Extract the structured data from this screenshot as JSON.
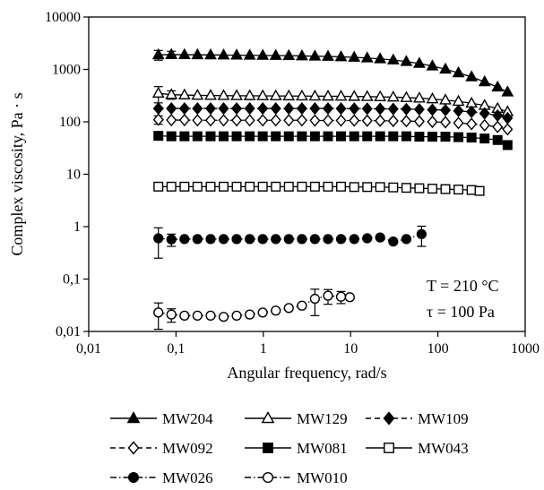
{
  "chart_data": {
    "type": "scatter",
    "x_scale": "log",
    "y_scale": "log",
    "xlabel": "Angular frequency, rad/s",
    "ylabel": "Complex viscosity, Pa · s",
    "xlim": [
      0.01,
      1000
    ],
    "ylim": [
      0.01,
      10000
    ],
    "x_ticks": [
      0.01,
      0.1,
      1,
      10,
      100,
      1000
    ],
    "x_tick_labels": [
      "0,01",
      "0,1",
      "1",
      "10",
      "100",
      "1000"
    ],
    "y_ticks": [
      0.01,
      0.1,
      1,
      10,
      100,
      1000,
      10000
    ],
    "y_tick_labels": [
      "0,01",
      "0,1",
      "1",
      "10",
      "100",
      "1000",
      "10000"
    ],
    "grid": false,
    "legend_position": "bottom",
    "annotations": [
      "T = 210 °C",
      "τ = 100 Pa"
    ],
    "series": [
      {
        "name": "MW204",
        "marker": "triangle",
        "filled": true,
        "line": "solid",
        "x": [
          0.0628,
          0.0885,
          0.125,
          0.176,
          0.249,
          0.351,
          0.495,
          0.699,
          0.985,
          1.39,
          1.96,
          2.77,
          3.9,
          5.51,
          7.77,
          11.0,
          15.5,
          21.8,
          30.8,
          43.5,
          61.3,
          86.5,
          122,
          172,
          243,
          343,
          483,
          628
        ],
        "y": [
          1900,
          1920,
          1910,
          1900,
          1890,
          1880,
          1870,
          1860,
          1850,
          1840,
          1830,
          1810,
          1790,
          1770,
          1740,
          1700,
          1650,
          1590,
          1510,
          1410,
          1300,
          1160,
          1010,
          860,
          720,
          580,
          460,
          370
        ],
        "err": [
          [
            0,
            400
          ],
          [
            1,
            300
          ]
        ]
      },
      {
        "name": "MW129",
        "marker": "triangle",
        "filled": false,
        "line": "solid",
        "x": [
          0.0628,
          0.0885,
          0.125,
          0.176,
          0.249,
          0.351,
          0.495,
          0.699,
          0.985,
          1.39,
          1.96,
          2.77,
          3.9,
          5.51,
          7.77,
          11.0,
          15.5,
          21.8,
          30.8,
          43.5,
          61.3,
          86.5,
          122,
          172,
          243,
          343,
          483,
          628
        ],
        "y": [
          350,
          330,
          325,
          320,
          318,
          316,
          315,
          314,
          313,
          312,
          311,
          310,
          309,
          308,
          307,
          305,
          303,
          300,
          296,
          290,
          283,
          273,
          260,
          245,
          226,
          205,
          180,
          155
        ],
        "err": [
          [
            0,
            120
          ],
          [
            1,
            60
          ]
        ]
      },
      {
        "name": "MW109",
        "marker": "diamond",
        "filled": true,
        "line": "dashed",
        "x": [
          0.0628,
          0.0885,
          0.125,
          0.176,
          0.249,
          0.351,
          0.495,
          0.699,
          0.985,
          1.39,
          1.96,
          2.77,
          3.9,
          5.51,
          7.77,
          11.0,
          15.5,
          21.8,
          30.8,
          43.5,
          61.3,
          86.5,
          122,
          172,
          243,
          343,
          483,
          628
        ],
        "y": [
          180,
          180,
          180,
          180,
          180,
          180,
          180,
          180,
          180,
          180,
          180,
          180,
          180,
          180,
          179,
          179,
          178,
          177,
          176,
          175,
          173,
          170,
          167,
          162,
          155,
          145,
          132,
          118
        ],
        "err": []
      },
      {
        "name": "MW092",
        "marker": "diamond",
        "filled": false,
        "line": "dashed",
        "x": [
          0.0628,
          0.0885,
          0.125,
          0.176,
          0.249,
          0.351,
          0.495,
          0.699,
          0.985,
          1.39,
          1.96,
          2.77,
          3.9,
          5.51,
          7.77,
          11.0,
          15.5,
          21.8,
          30.8,
          43.5,
          61.3,
          86.5,
          122,
          172,
          243,
          343,
          483,
          628
        ],
        "y": [
          110,
          108,
          108,
          107,
          107,
          107,
          107,
          107,
          107,
          107,
          107,
          107,
          106,
          106,
          106,
          106,
          105,
          105,
          104,
          103,
          102,
          100,
          98,
          95,
          91,
          86,
          80,
          72
        ],
        "err": [
          [
            0,
            20
          ]
        ]
      },
      {
        "name": "MW081",
        "marker": "square",
        "filled": true,
        "line": "solid",
        "x": [
          0.0628,
          0.0885,
          0.125,
          0.176,
          0.249,
          0.351,
          0.495,
          0.699,
          0.985,
          1.39,
          1.96,
          2.77,
          3.9,
          5.51,
          7.77,
          11.0,
          15.5,
          21.8,
          30.8,
          43.5,
          61.3,
          86.5,
          122,
          172,
          243,
          343,
          483,
          628
        ],
        "y": [
          54,
          53,
          53,
          53,
          53,
          53,
          53,
          53,
          53,
          53,
          53,
          53,
          53,
          53,
          53,
          53,
          53,
          53,
          53,
          53,
          52,
          52,
          52,
          51,
          50,
          48,
          45,
          36
        ],
        "err": []
      },
      {
        "name": "MW043",
        "marker": "square",
        "filled": false,
        "line": "solid",
        "x": [
          0.0628,
          0.0885,
          0.125,
          0.176,
          0.249,
          0.351,
          0.495,
          0.699,
          0.985,
          1.39,
          1.96,
          2.77,
          3.9,
          5.51,
          7.77,
          11.0,
          15.5,
          21.8,
          30.8,
          43.5,
          61.3,
          86.5,
          122,
          172,
          243,
          300
        ],
        "y": [
          5.8,
          5.8,
          5.8,
          5.8,
          5.8,
          5.8,
          5.8,
          5.8,
          5.8,
          5.8,
          5.8,
          5.8,
          5.8,
          5.8,
          5.8,
          5.7,
          5.7,
          5.7,
          5.6,
          5.5,
          5.4,
          5.3,
          5.2,
          5.1,
          5.0,
          4.8
        ],
        "err": []
      },
      {
        "name": "MW026",
        "marker": "circle",
        "filled": true,
        "line": "dashdot",
        "x": [
          0.0628,
          0.0885,
          0.125,
          0.176,
          0.249,
          0.351,
          0.495,
          0.699,
          0.985,
          1.39,
          1.96,
          2.77,
          3.9,
          5.51,
          7.77,
          11.0,
          15.5,
          21.8,
          30.8,
          43.5,
          65
        ],
        "y": [
          0.6,
          0.57,
          0.58,
          0.58,
          0.58,
          0.58,
          0.58,
          0.58,
          0.58,
          0.58,
          0.58,
          0.58,
          0.58,
          0.58,
          0.58,
          0.58,
          0.6,
          0.62,
          0.52,
          0.58,
          0.72
        ],
        "err": [
          [
            0,
            0.35
          ],
          [
            1,
            0.15
          ],
          [
            20,
            0.3
          ]
        ]
      },
      {
        "name": "MW010",
        "marker": "circle",
        "filled": false,
        "line": "dashdot",
        "x": [
          0.0628,
          0.0885,
          0.125,
          0.176,
          0.249,
          0.351,
          0.495,
          0.699,
          0.985,
          1.39,
          1.96,
          2.77,
          3.9,
          5.51,
          7.77,
          9.8
        ],
        "y": [
          0.023,
          0.021,
          0.02,
          0.02,
          0.02,
          0.019,
          0.02,
          0.021,
          0.023,
          0.025,
          0.028,
          0.031,
          0.042,
          0.048,
          0.046,
          0.045
        ],
        "err": [
          [
            0,
            0.012
          ],
          [
            1,
            0.006
          ],
          [
            12,
            0.022
          ],
          [
            13,
            0.015
          ],
          [
            14,
            0.012
          ]
        ]
      }
    ]
  }
}
